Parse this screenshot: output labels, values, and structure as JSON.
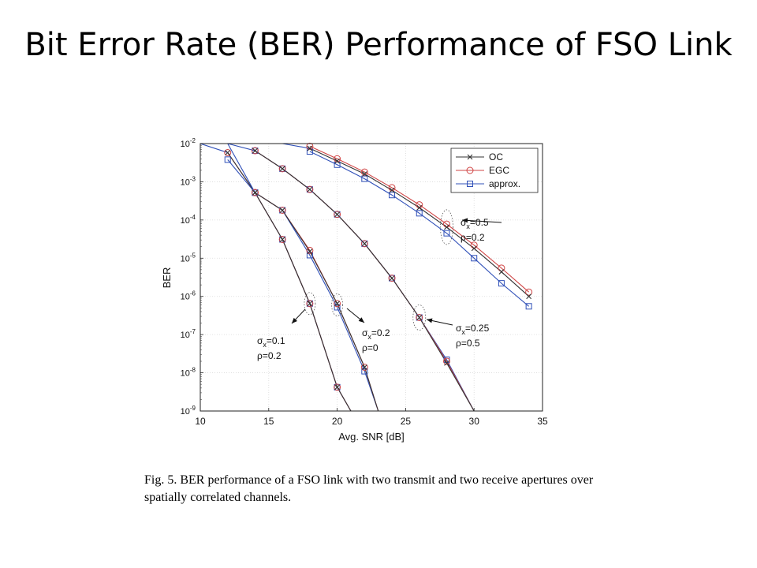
{
  "slide": {
    "title": "Bit Error Rate (BER) Performance of FSO Link",
    "caption": "Fig. 5.   BER performance of a FSO link with two transmit and two receive apertures over spatially correlated channels."
  },
  "chart_data": {
    "type": "line",
    "xlabel": "Avg. SNR [dB]",
    "ylabel": "BER",
    "xlim": [
      10,
      35
    ],
    "ylim": [
      1e-09,
      0.01
    ],
    "yscale": "log",
    "xticks": [
      10,
      15,
      20,
      25,
      30,
      35
    ],
    "yticks": [
      1e-09,
      1e-08,
      1e-07,
      1e-06,
      1e-05,
      0.0001,
      0.001,
      0.01
    ],
    "ytick_labels": [
      {
        "base": "10",
        "exp": "-9"
      },
      {
        "base": "10",
        "exp": "-8"
      },
      {
        "base": "10",
        "exp": "-7"
      },
      {
        "base": "10",
        "exp": "-6"
      },
      {
        "base": "10",
        "exp": "-5"
      },
      {
        "base": "10",
        "exp": "-4"
      },
      {
        "base": "10",
        "exp": "-3"
      },
      {
        "base": "10",
        "exp": "-2"
      }
    ],
    "grid": true,
    "legend": {
      "position": "top-right",
      "entries": [
        {
          "name": "OC",
          "color": "#333333",
          "marker": "x"
        },
        {
          "name": "EGC",
          "color": "#d04545",
          "marker": "circle"
        },
        {
          "name": "approx.",
          "color": "#3050b8",
          "marker": "square"
        }
      ]
    },
    "curves": [
      {
        "label": "σx=0.1, ρ=0.2",
        "x": [
          12,
          14,
          16,
          18,
          20,
          21
        ],
        "OC": [
          0.0058,
          0.00052,
          3.1e-05,
          6.5e-07,
          4.2e-09,
          1e-09
        ],
        "EGC": [
          0.0058,
          0.00052,
          3.1e-05,
          6.5e-07,
          4.2e-09,
          1e-09
        ],
        "approx": [
          0.0038,
          0.00052,
          3.1e-05,
          6.5e-07,
          4.2e-09,
          1e-09
        ]
      },
      {
        "label": "σx=0.2, ρ=0",
        "x": [
          14,
          16,
          18,
          20,
          22,
          23
        ],
        "OC": [
          0.00052,
          0.00018,
          1.5e-05,
          6.5e-07,
          1.4e-08,
          1e-09
        ],
        "EGC": [
          0.00052,
          0.00018,
          1.6e-05,
          6.5e-07,
          1.4e-08,
          1e-09
        ],
        "approx": [
          0.00052,
          0.00018,
          1.2e-05,
          5.2e-07,
          1.1e-08,
          1e-09
        ]
      },
      {
        "label": "σx=0.25, ρ=0.5",
        "x": [
          14,
          16,
          18,
          20,
          22,
          24,
          26,
          28,
          30
        ],
        "OC": [
          0.0065,
          0.0022,
          0.00063,
          0.00014,
          2.4e-05,
          3e-06,
          2.8e-07,
          1.8e-08,
          1e-09
        ],
        "EGC": [
          0.0065,
          0.0022,
          0.00063,
          0.00014,
          2.4e-05,
          3e-06,
          2.8e-07,
          2e-08,
          1e-09
        ],
        "approx": [
          0.0065,
          0.0022,
          0.00063,
          0.00014,
          2.4e-05,
          3e-06,
          2.8e-07,
          2.2e-08,
          1e-09
        ]
      },
      {
        "label": "σx=0.5, ρ=0.2",
        "x": [
          18,
          20,
          22,
          24,
          26,
          28,
          30,
          32,
          34
        ],
        "OC": [
          0.0075,
          0.0035,
          0.0016,
          0.0006,
          0.00021,
          6.5e-05,
          1.8e-05,
          4.4e-06,
          1e-06
        ],
        "EGC": [
          0.0085,
          0.004,
          0.0018,
          0.0007,
          0.00025,
          7.8e-05,
          2.2e-05,
          5.5e-06,
          1.3e-06
        ],
        "approx": [
          0.0062,
          0.0028,
          0.0012,
          0.00045,
          0.00015,
          4.5e-05,
          1e-05,
          2.2e-06,
          5.5e-07
        ]
      }
    ],
    "annotations": [
      {
        "line1": {
          "sym": "σ",
          "sub": "x",
          "val": "=0.1"
        },
        "line2": "ρ=0.2"
      },
      {
        "line1": {
          "sym": "σ",
          "sub": "x",
          "val": "=0.2"
        },
        "line2": "ρ=0"
      },
      {
        "line1": {
          "sym": "σ",
          "sub": "x",
          "val": "=0.25"
        },
        "line2": "ρ=0.5"
      },
      {
        "line1": {
          "sym": "σ",
          "sub": "x",
          "val": "=0.5"
        },
        "line2": "ρ=0.2"
      }
    ]
  }
}
